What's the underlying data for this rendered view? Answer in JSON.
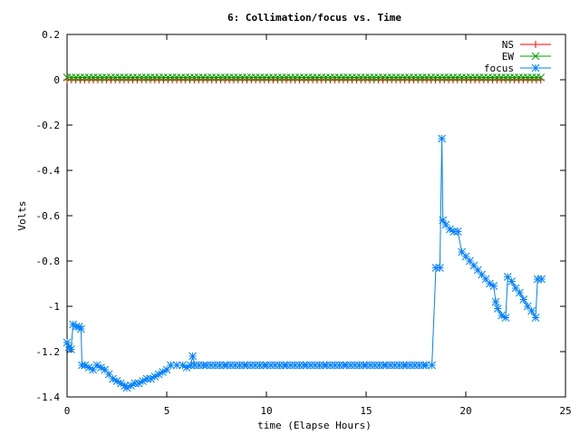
{
  "chart_data": {
    "type": "line",
    "title": "6: Collimation/focus vs. Time",
    "xlabel": "time (Elapse Hours)",
    "ylabel": "Volts",
    "xlim": [
      0,
      25
    ],
    "ylim": [
      -1.4,
      0.2
    ],
    "x_ticks": [
      0,
      5,
      10,
      15,
      20,
      25
    ],
    "x_tick_labels": [
      "0",
      "5",
      "10",
      "15",
      "20",
      "25"
    ],
    "y_ticks": [
      0.2,
      0,
      -0.2,
      -0.4,
      -0.6,
      -0.8,
      -1,
      -1.2,
      -1.4
    ],
    "y_tick_labels": [
      "0.2",
      "0",
      "-0.2",
      "-0.4",
      "-0.6",
      "-0.8",
      "-1",
      "-1.2",
      "-1.4"
    ],
    "grid": false,
    "legend_position": "top-right",
    "series": [
      {
        "name": "NS",
        "color": "#ff0000",
        "marker": "plus",
        "points": [
          [
            0,
            0
          ],
          [
            23.8,
            0
          ]
        ]
      },
      {
        "name": "EW",
        "color": "#00a000",
        "marker": "cross",
        "points": [
          [
            0,
            0.01
          ],
          [
            23.8,
            0.01
          ]
        ]
      },
      {
        "name": "focus",
        "color": "#0080ff",
        "marker": "star",
        "points": [
          [
            0,
            -1.16
          ],
          [
            0.1,
            -1.18
          ],
          [
            0.2,
            -1.19
          ],
          [
            0.3,
            -1.08
          ],
          [
            0.45,
            -1.09
          ],
          [
            0.6,
            -1.09
          ],
          [
            0.7,
            -1.1
          ],
          [
            0.75,
            -1.26
          ],
          [
            0.9,
            -1.26
          ],
          [
            1.1,
            -1.27
          ],
          [
            1.3,
            -1.28
          ],
          [
            1.5,
            -1.26
          ],
          [
            1.7,
            -1.27
          ],
          [
            1.9,
            -1.28
          ],
          [
            2.1,
            -1.3
          ],
          [
            2.3,
            -1.32
          ],
          [
            2.5,
            -1.33
          ],
          [
            2.7,
            -1.34
          ],
          [
            2.9,
            -1.35
          ],
          [
            3.0,
            -1.36
          ],
          [
            3.2,
            -1.35
          ],
          [
            3.4,
            -1.34
          ],
          [
            3.6,
            -1.34
          ],
          [
            3.8,
            -1.33
          ],
          [
            4.0,
            -1.32
          ],
          [
            4.2,
            -1.32
          ],
          [
            4.4,
            -1.31
          ],
          [
            4.6,
            -1.3
          ],
          [
            4.8,
            -1.29
          ],
          [
            5.0,
            -1.28
          ],
          [
            5.2,
            -1.26
          ],
          [
            5.5,
            -1.26
          ],
          [
            5.8,
            -1.26
          ],
          [
            6.0,
            -1.27
          ],
          [
            6.2,
            -1.26
          ],
          [
            6.3,
            -1.22
          ],
          [
            6.4,
            -1.26
          ],
          [
            7,
            -1.26
          ],
          [
            8,
            -1.26
          ],
          [
            9,
            -1.26
          ],
          [
            10,
            -1.26
          ],
          [
            11,
            -1.26
          ],
          [
            12,
            -1.26
          ],
          [
            13,
            -1.26
          ],
          [
            14,
            -1.26
          ],
          [
            15,
            -1.26
          ],
          [
            16,
            -1.26
          ],
          [
            17,
            -1.26
          ],
          [
            18,
            -1.26
          ],
          [
            18.3,
            -1.26
          ],
          [
            18.5,
            -0.83
          ],
          [
            18.7,
            -0.83
          ],
          [
            18.8,
            -0.26
          ],
          [
            18.85,
            -0.62
          ],
          [
            19.0,
            -0.64
          ],
          [
            19.2,
            -0.66
          ],
          [
            19.4,
            -0.67
          ],
          [
            19.6,
            -0.67
          ],
          [
            19.8,
            -0.76
          ],
          [
            20.0,
            -0.78
          ],
          [
            20.2,
            -0.8
          ],
          [
            20.4,
            -0.82
          ],
          [
            20.6,
            -0.84
          ],
          [
            20.8,
            -0.86
          ],
          [
            21.0,
            -0.88
          ],
          [
            21.2,
            -0.9
          ],
          [
            21.4,
            -0.91
          ],
          [
            21.5,
            -0.98
          ],
          [
            21.6,
            -1.01
          ],
          [
            21.8,
            -1.04
          ],
          [
            22.0,
            -1.05
          ],
          [
            22.1,
            -0.87
          ],
          [
            22.3,
            -0.89
          ],
          [
            22.5,
            -0.92
          ],
          [
            22.7,
            -0.94
          ],
          [
            22.9,
            -0.97
          ],
          [
            23.1,
            -1.0
          ],
          [
            23.3,
            -1.02
          ],
          [
            23.5,
            -1.05
          ],
          [
            23.6,
            -0.88
          ],
          [
            23.8,
            -0.88
          ]
        ]
      }
    ]
  }
}
